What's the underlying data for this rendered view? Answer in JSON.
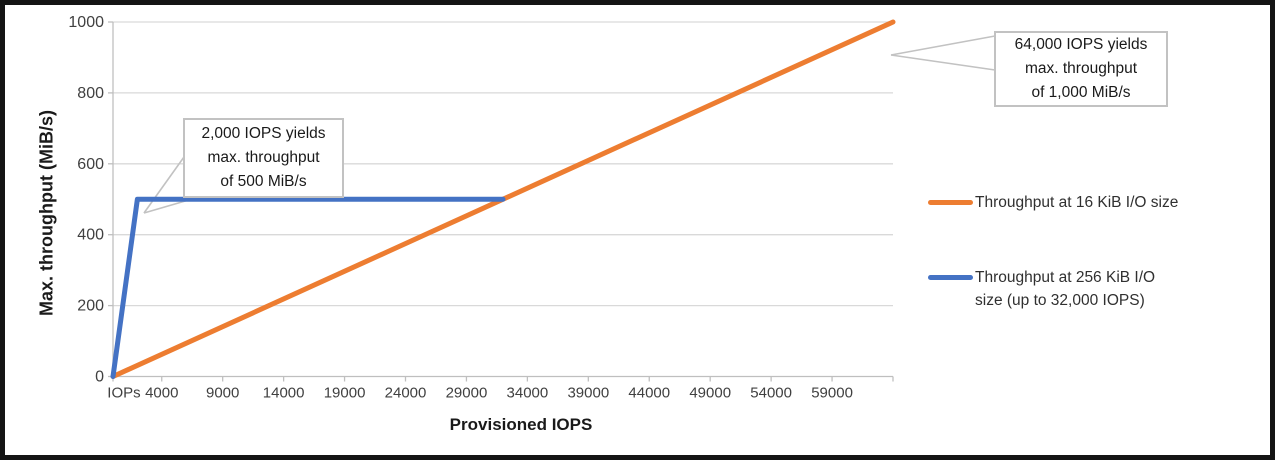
{
  "chart_data": {
    "type": "line",
    "title": "",
    "xlabel": "Provisioned IOPS",
    "ylabel": "Max. throughput (MiB/s)",
    "xlim": [
      0,
      64000
    ],
    "ylim": [
      0,
      1000
    ],
    "grid": "horizontal",
    "legend_position": "right",
    "colors": {
      "grid": "#D9D9D9",
      "axis": "#BFBFBF",
      "tick_text": "#404040",
      "callout_border": "#C2C2C2"
    },
    "x_ticks": [
      {
        "label": "IOPs",
        "value": 900,
        "mark": false
      },
      {
        "label": "4000",
        "value": 4000
      },
      {
        "label": "9000",
        "value": 9000
      },
      {
        "label": "14000",
        "value": 14000
      },
      {
        "label": "19000",
        "value": 19000
      },
      {
        "label": "24000",
        "value": 24000
      },
      {
        "label": "29000",
        "value": 29000
      },
      {
        "label": "34000",
        "value": 34000
      },
      {
        "label": "39000",
        "value": 39000
      },
      {
        "label": "44000",
        "value": 44000
      },
      {
        "label": "49000",
        "value": 49000
      },
      {
        "label": "54000",
        "value": 54000
      },
      {
        "label": "59000",
        "value": 59000
      }
    ],
    "y_ticks": [
      0,
      200,
      400,
      600,
      800,
      1000
    ],
    "series": [
      {
        "name": "Throughput at 16 KiB I/O size",
        "color": "#ED7D31",
        "points": [
          [
            0,
            0
          ],
          [
            64000,
            1000
          ]
        ]
      },
      {
        "name": "Throughput at 256 KiB I/O size (up to 32,000 IOPS)",
        "color": "#4472C4",
        "points": [
          [
            0,
            0
          ],
          [
            2000,
            500
          ],
          [
            32000,
            500
          ]
        ]
      }
    ],
    "annotations": [
      {
        "lines": [
          "2,000 IOPS yields",
          "max. throughput",
          "of 500 MiB/s"
        ],
        "target": [
          2000,
          500
        ]
      },
      {
        "lines": [
          "64,000 IOPS yields",
          "max. throughput",
          "of 1,000 MiB/s"
        ],
        "target": [
          64000,
          1000
        ]
      }
    ]
  },
  "axes": {
    "x_title": "Provisioned IOPS",
    "y_title": "Max. throughput (MiB/s)"
  }
}
